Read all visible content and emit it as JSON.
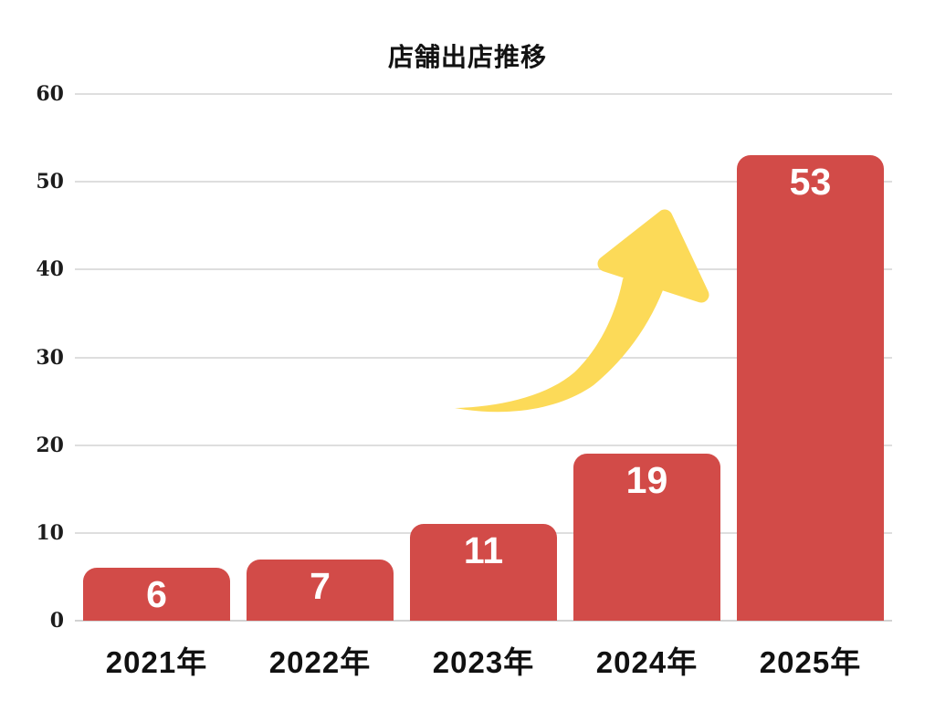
{
  "chart_data": {
    "type": "bar",
    "title": "店舗出店推移",
    "categories": [
      "2021年",
      "2022年",
      "2023年",
      "2024年",
      "2025年"
    ],
    "values": [
      6,
      7,
      11,
      19,
      53
    ],
    "xlabel": "",
    "ylabel": "",
    "ylim": [
      0,
      60
    ],
    "yticks": [
      0,
      10,
      20,
      30,
      40,
      50,
      60
    ],
    "grid": true,
    "legend": "none",
    "colors": {
      "bar": "#d24b48",
      "bar_value_label": "#ffffff",
      "gridline": "#dedede",
      "baseline": "#d2d2d2",
      "title_text": "#121212",
      "axis_text": "#111111",
      "annotation_arrow": "#fcda58"
    },
    "annotations": [
      {
        "type": "curved-growth-arrow-up-right",
        "color": "#fcda58"
      }
    ]
  }
}
